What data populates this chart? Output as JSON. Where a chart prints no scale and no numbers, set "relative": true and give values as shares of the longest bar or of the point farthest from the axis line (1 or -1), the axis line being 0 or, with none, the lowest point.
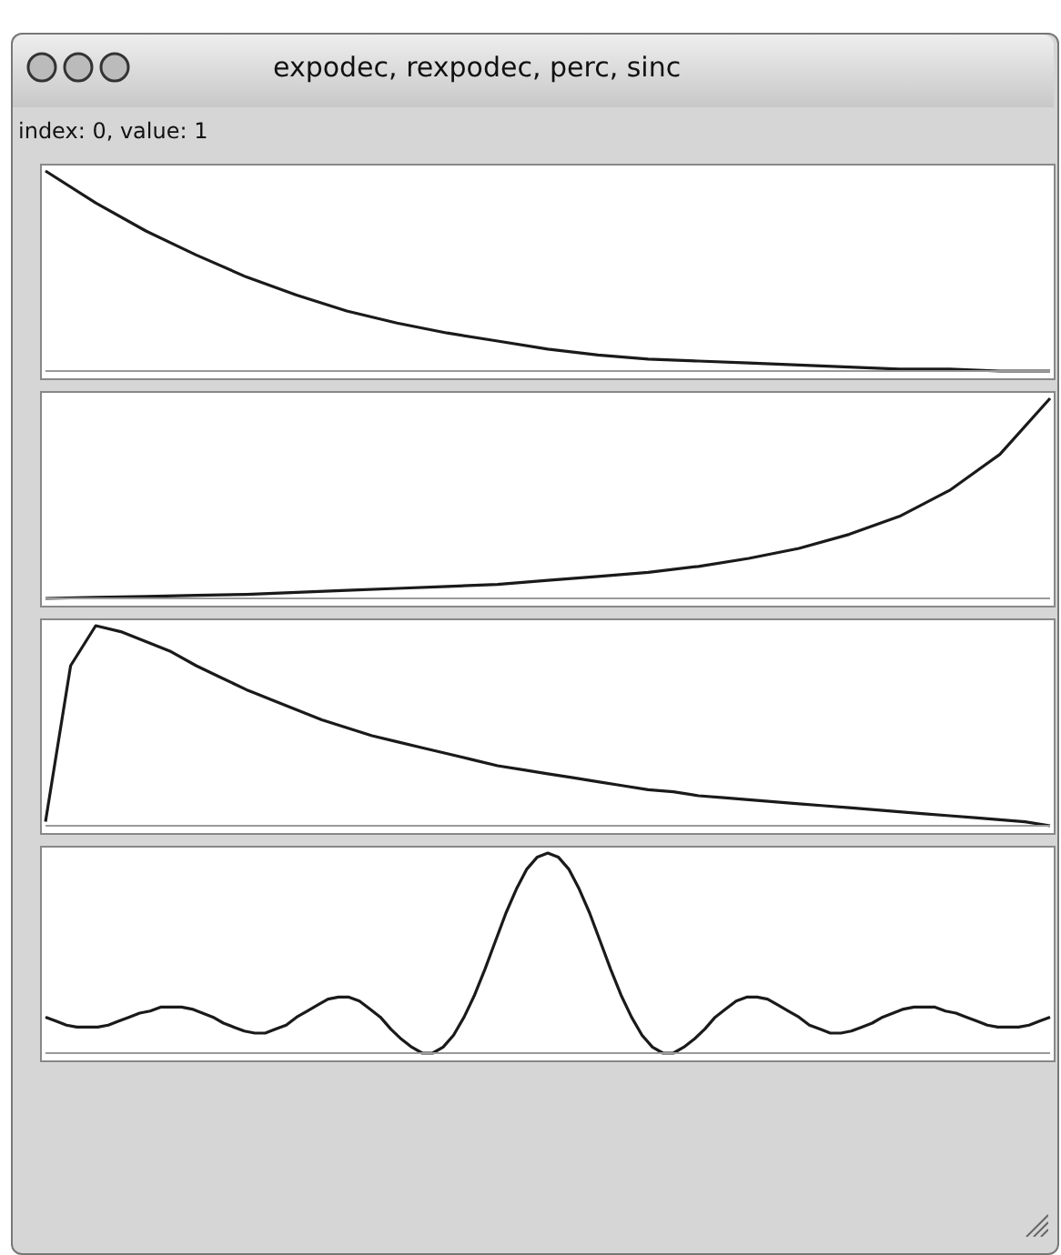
{
  "chart_data": [
    {
      "type": "line",
      "title": "expodec, rexpodec, perc, sinc",
      "subtitle": "index: 0, value: 1",
      "relative": true,
      "categories": [
        null,
        null,
        null,
        null,
        null,
        null,
        null,
        null,
        null,
        null,
        null,
        null,
        null,
        null,
        null,
        null,
        null,
        null,
        null,
        null,
        null
      ],
      "series": [
        {
          "color": "#1a1a1a",
          "values": [
            1,
            0.84,
            0.7,
            0.58,
            0.47,
            0.38,
            0.3,
            0.24,
            0.19,
            0.15,
            0.11,
            0.08,
            0.06,
            0.05,
            0.04,
            0.03,
            0.02,
            0.01,
            0.01,
            0,
            0
          ]
        }
      ]
    },
    {
      "type": "line",
      "relative": true,
      "categories": [
        null,
        null,
        null,
        null,
        null,
        null,
        null,
        null,
        null,
        null,
        null,
        null,
        null,
        null,
        null,
        null,
        null,
        null,
        null,
        null,
        null
      ],
      "series": [
        {
          "color": "#1a1a1a",
          "values": [
            0,
            0.005,
            0.01,
            0.015,
            0.02,
            0.03,
            0.04,
            0.05,
            0.06,
            0.07,
            0.09,
            0.11,
            0.13,
            0.16,
            0.2,
            0.25,
            0.32,
            0.41,
            0.54,
            0.72,
            1
          ]
        }
      ]
    },
    {
      "type": "line",
      "relative": true,
      "categories": [
        null,
        null,
        null,
        null,
        null,
        null,
        null,
        null,
        null,
        null,
        null,
        null,
        null,
        null,
        null,
        null,
        null,
        null,
        null,
        null,
        null,
        null,
        null,
        null,
        null,
        null,
        null,
        null,
        null,
        null,
        null,
        null,
        null,
        null,
        null,
        null,
        null,
        null,
        null,
        null,
        null
      ],
      "series": [
        {
          "color": "#1a1a1a",
          "values": [
            0.02,
            0.8,
            1,
            0.97,
            0.92,
            0.87,
            0.8,
            0.74,
            0.68,
            0.63,
            0.58,
            0.53,
            0.49,
            0.45,
            0.42,
            0.39,
            0.36,
            0.33,
            0.3,
            0.28,
            0.26,
            0.24,
            0.22,
            0.2,
            0.18,
            0.17,
            0.15,
            0.14,
            0.13,
            0.12,
            0.11,
            0.1,
            0.09,
            0.08,
            0.07,
            0.06,
            0.05,
            0.04,
            0.03,
            0.02,
            0
          ]
        }
      ]
    },
    {
      "type": "line",
      "relative": true,
      "categories": [
        null,
        null,
        null,
        null,
        null,
        null,
        null,
        null,
        null,
        null,
        null,
        null,
        null,
        null,
        null,
        null,
        null,
        null,
        null,
        null,
        null,
        null,
        null,
        null,
        null,
        null,
        null,
        null,
        null,
        null,
        null,
        null,
        null,
        null,
        null,
        null,
        null,
        null,
        null,
        null,
        null,
        null,
        null,
        null,
        null,
        null,
        null,
        null,
        null,
        null,
        null,
        null,
        null,
        null,
        null,
        null,
        null,
        null,
        null,
        null,
        null,
        null,
        null,
        null,
        null,
        null,
        null,
        null,
        null,
        null,
        null,
        null,
        null,
        null,
        null,
        null,
        null,
        null,
        null,
        null,
        null,
        null,
        null,
        null,
        null,
        null,
        null,
        null,
        null,
        null,
        null,
        null,
        null,
        null,
        null,
        null,
        null
      ],
      "series": [
        {
          "color": "#1a1a1a",
          "values": [
            0.18,
            0.16,
            0.14,
            0.13,
            0.13,
            0.13,
            0.14,
            0.16,
            0.18,
            0.2,
            0.21,
            0.23,
            0.23,
            0.23,
            0.22,
            0.2,
            0.18,
            0.15,
            0.13,
            0.11,
            0.1,
            0.1,
            0.12,
            0.14,
            0.18,
            0.21,
            0.24,
            0.27,
            0.28,
            0.28,
            0.26,
            0.22,
            0.18,
            0.12,
            0.07,
            0.03,
            0,
            0,
            0.03,
            0.09,
            0.18,
            0.29,
            0.42,
            0.56,
            0.7,
            0.82,
            0.92,
            0.98,
            1,
            0.98,
            0.92,
            0.82,
            0.7,
            0.56,
            0.42,
            0.29,
            0.18,
            0.09,
            0.03,
            0,
            0,
            0.03,
            0.07,
            0.12,
            0.18,
            0.22,
            0.26,
            0.28,
            0.28,
            0.27,
            0.24,
            0.21,
            0.18,
            0.14,
            0.12,
            0.1,
            0.1,
            0.11,
            0.13,
            0.15,
            0.18,
            0.2,
            0.22,
            0.23,
            0.23,
            0.23,
            0.21,
            0.2,
            0.18,
            0.16,
            0.14,
            0.13,
            0.13,
            0.13,
            0.14,
            0.16,
            0.18
          ]
        }
      ]
    }
  ]
}
